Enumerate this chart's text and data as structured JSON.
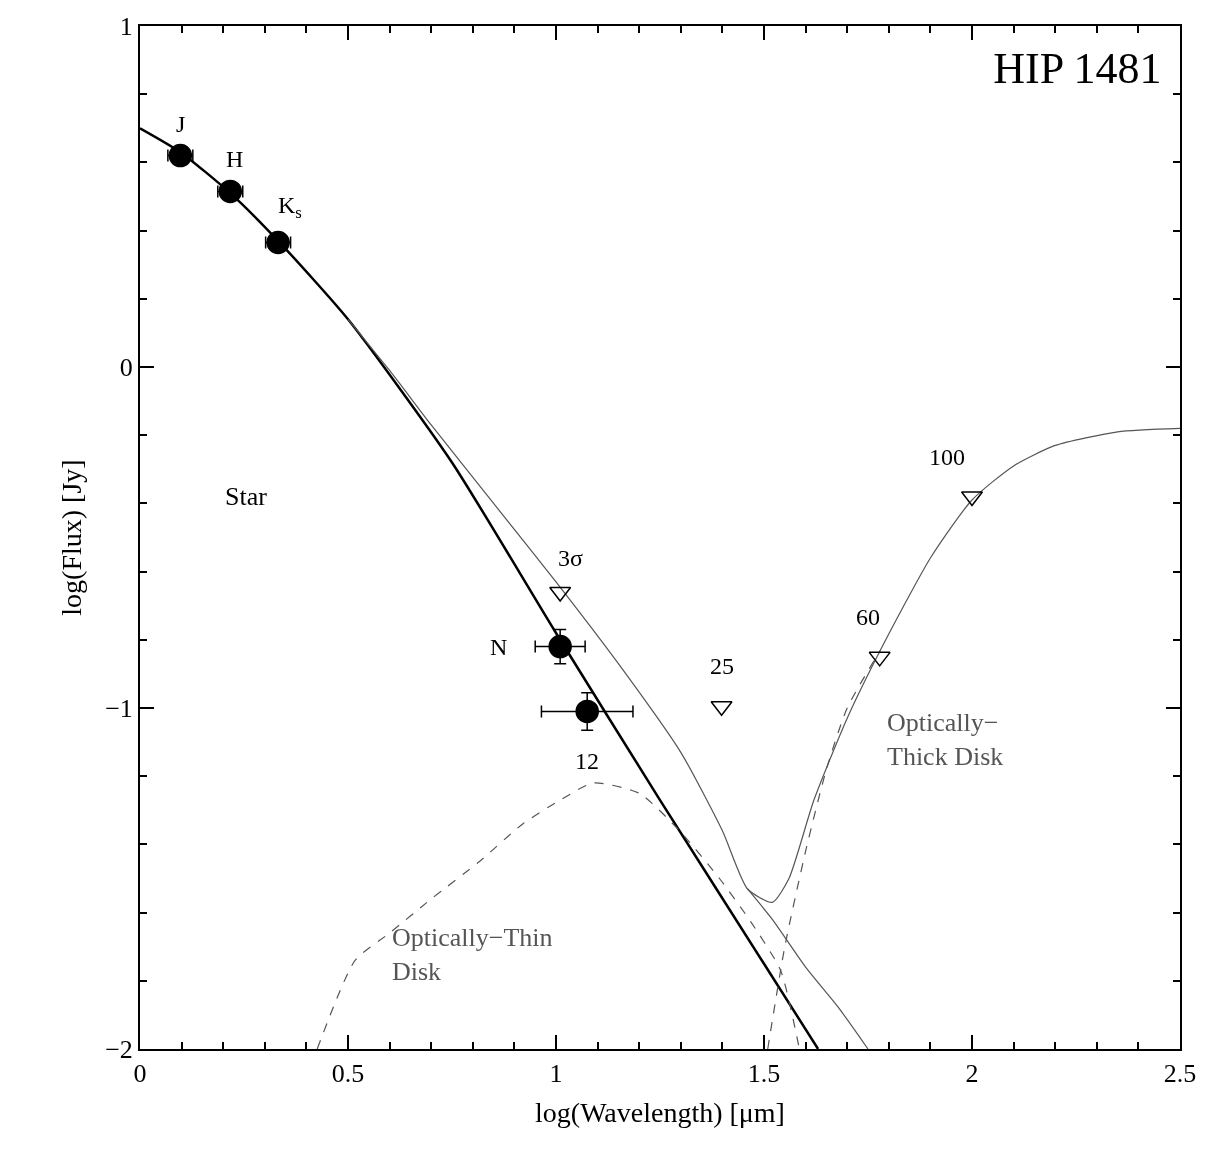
{
  "chart_data": {
    "type": "line",
    "title": "HIP 1481",
    "xlabel": "log(Wavelength) [μm]",
    "ylabel": "log(Flux) [Jy]",
    "xlim": [
      0,
      2.5
    ],
    "ylim": [
      -2,
      1
    ],
    "xticks": [
      0,
      {
        "value": 0.1,
        "label": null
      },
      {
        "value": 0.2,
        "label": null
      },
      {
        "value": 0.3,
        "label": null
      },
      {
        "value": 0.4,
        "label": null
      },
      0.5,
      {
        "value": 0.6,
        "label": null
      },
      {
        "value": 0.7,
        "label": null
      },
      {
        "value": 0.8,
        "label": null
      },
      {
        "value": 0.9,
        "label": null
      },
      1,
      {
        "value": 1.1,
        "label": null
      },
      {
        "value": 1.2,
        "label": null
      },
      {
        "value": 1.3,
        "label": null
      },
      {
        "value": 1.4,
        "label": null
      },
      1.5,
      {
        "value": 1.6,
        "label": null
      },
      {
        "value": 1.7,
        "label": null
      },
      {
        "value": 1.8,
        "label": null
      },
      {
        "value": 1.9,
        "label": null
      },
      2,
      {
        "value": 2.1,
        "label": null
      },
      {
        "value": 2.2,
        "label": null
      },
      {
        "value": 2.3,
        "label": null
      },
      {
        "value": 2.4,
        "label": null
      },
      2.5
    ],
    "yticks": [
      {
        "value": -2,
        "label": "−2"
      },
      {
        "value": -1.8,
        "label": null
      },
      {
        "value": -1.6,
        "label": null
      },
      {
        "value": -1.4,
        "label": null
      },
      {
        "value": -1.2,
        "label": null
      },
      {
        "value": -1,
        "label": "−1"
      },
      {
        "value": -0.8,
        "label": null
      },
      {
        "value": -0.6,
        "label": null
      },
      {
        "value": -0.4,
        "label": null
      },
      {
        "value": -0.2,
        "label": null
      },
      0,
      {
        "value": 0.2,
        "label": null
      },
      {
        "value": 0.4,
        "label": null
      },
      {
        "value": 0.6,
        "label": null
      },
      {
        "value": 0.8,
        "label": null
      },
      1
    ],
    "legend": false,
    "series": [
      {
        "name": "Star",
        "color": "#000000",
        "line_style": "solid",
        "marker": "none",
        "x": [
          0,
          0.097,
          0.217,
          0.332,
          0.5,
          0.75,
          1.0,
          1.25,
          1.5,
          1.63
        ],
        "values": [
          0.7,
          0.63,
          0.51,
          0.37,
          0.14,
          -0.28,
          -0.78,
          -1.27,
          -1.75,
          -2.0
        ]
      },
      {
        "color": "#555555",
        "line_style": "solid",
        "marker": "none",
        "x": [
          0.5,
          0.6,
          0.7,
          0.85,
          1.0,
          1.15,
          1.3,
          1.4,
          1.46,
          1.52,
          1.56,
          1.62,
          1.7,
          1.78,
          1.9,
          2.0,
          2.1,
          2.2,
          2.35,
          2.5
        ],
        "values": [
          0.14,
          -0.01,
          -0.17,
          -0.4,
          -0.63,
          -0.87,
          -1.13,
          -1.36,
          -1.53,
          -1.57,
          -1.5,
          -1.27,
          -1.03,
          -0.83,
          -0.56,
          -0.39,
          -0.29,
          -0.23,
          -0.19,
          -0.18
        ]
      },
      {
        "color": "#555555",
        "line_style": "solid",
        "marker": "none",
        "x": [
          1.46,
          1.52,
          1.6,
          1.68,
          1.75
        ],
        "values": [
          -1.53,
          -1.62,
          -1.76,
          -1.88,
          -2.0
        ]
      },
      {
        "name": "Optically−Thin\nDisk",
        "color": "#555555",
        "line_style": "dashed",
        "marker": "none",
        "x": [
          0.426,
          0.517,
          0.6,
          0.7,
          0.816,
          0.92,
          1.01,
          1.09,
          1.2,
          1.297,
          1.393,
          1.47,
          1.54,
          1.585
        ],
        "values": [
          -2.0,
          -1.74,
          -1.66,
          -1.56,
          -1.45,
          -1.34,
          -1.27,
          -1.22,
          -1.25,
          -1.36,
          -1.5,
          -1.63,
          -1.77,
          -2.0
        ]
      },
      {
        "name": "Optically−\nThick Disk",
        "color": "#555555",
        "line_style": "dashed",
        "marker": "none",
        "x": [
          1.509,
          1.55,
          1.6,
          1.65,
          1.7,
          1.78
        ],
        "values": [
          -2.0,
          -1.7,
          -1.42,
          -1.18,
          -1.0,
          -0.83
        ]
      },
      {
        "type": "scatter",
        "color": "#000000",
        "marker": "circle",
        "x": [
          0.097,
          0.217,
          0.332,
          1.01,
          1.075
        ],
        "values": [
          0.62,
          0.515,
          0.365,
          -0.82,
          -1.01
        ],
        "errors": [
          null,
          null,
          null,
          0.05,
          0.055
        ],
        "xerrors": [
          0.03,
          0.03,
          0.03,
          0.06,
          0.11
        ]
      },
      {
        "type": "scatter",
        "color": "#000000",
        "marker": "triangle",
        "x": [
          1.01,
          1.398,
          1.778,
          2.0
        ],
        "values": [
          -0.66,
          -0.995,
          -0.85,
          -0.38
        ]
      }
    ],
    "annotations": [
      {
        "text": "J",
        "x": 0.097,
        "y": 0.62
      },
      {
        "text": "H",
        "x": 0.217,
        "y": 0.515
      },
      {
        "text": "K$_{s}$",
        "x": 0.332,
        "y": 0.365
      },
      {
        "text": "N",
        "x": 1.01,
        "y": -0.82
      },
      {
        "text": "12",
        "x": 1.075,
        "y": -1.01
      },
      {
        "text": "3σ",
        "x": 1.01,
        "y": -0.66
      },
      {
        "text": "25",
        "x": 1.398,
        "y": -0.995
      },
      {
        "text": "60",
        "x": 1.778,
        "y": -0.85
      },
      {
        "text": "100",
        "x": 2.0,
        "y": -0.38
      }
    ]
  }
}
